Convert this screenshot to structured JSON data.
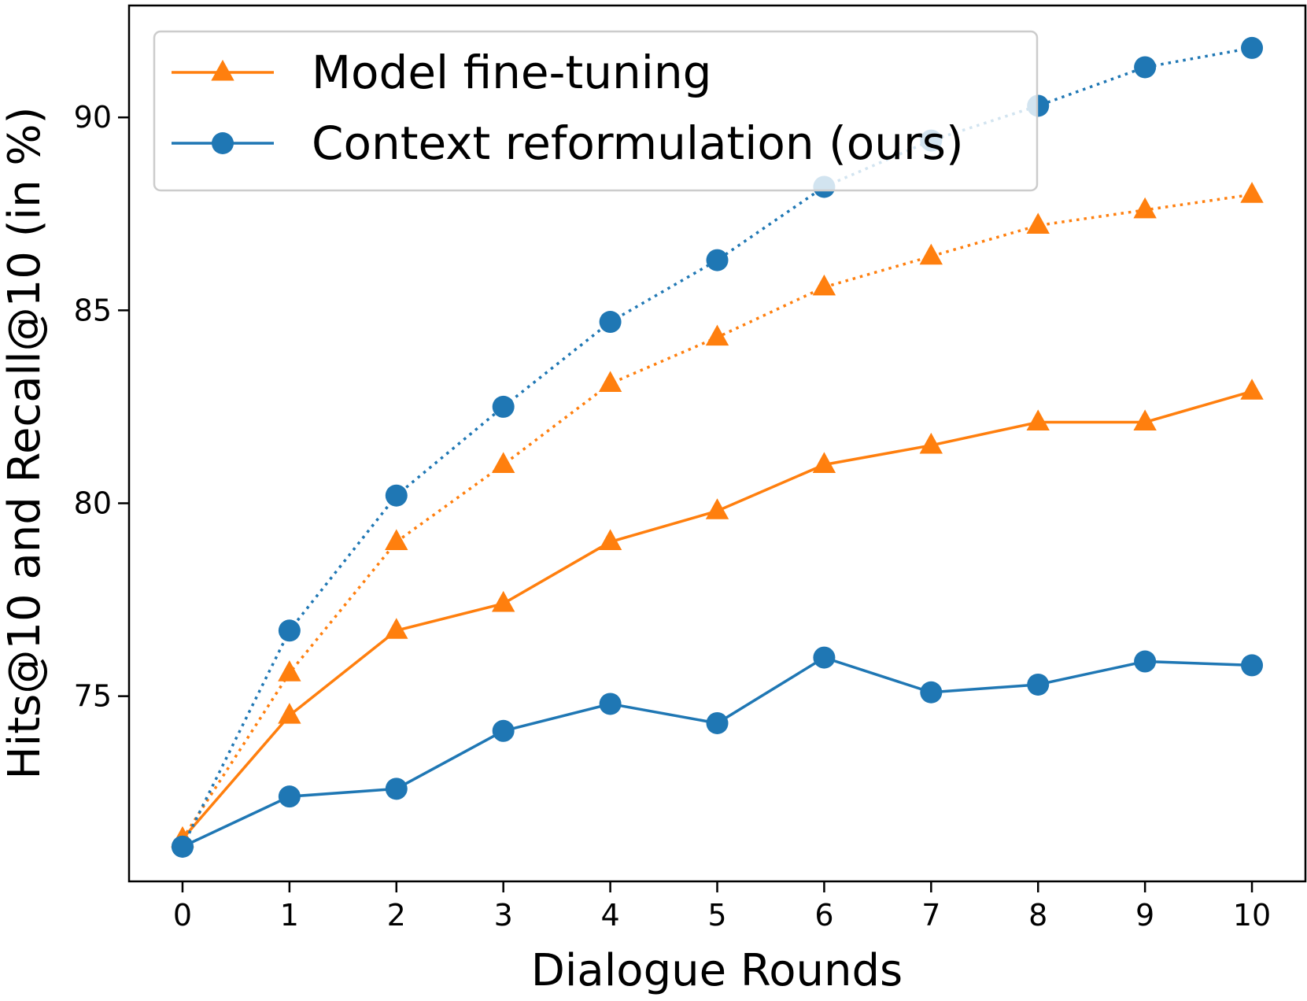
{
  "chart_data": {
    "type": "line",
    "xlabel": "Dialogue Rounds",
    "ylabel": "Hits@10 and Recall@10 (in %)",
    "x": [
      0,
      1,
      2,
      3,
      4,
      5,
      6,
      7,
      8,
      9,
      10
    ],
    "xticks": [
      "0",
      "1",
      "2",
      "3",
      "4",
      "5",
      "6",
      "7",
      "8",
      "9",
      "10"
    ],
    "yticks": [
      "75",
      "80",
      "85",
      "90"
    ],
    "ytick_values": [
      75,
      80,
      85,
      90
    ],
    "xlim": [
      -0.5,
      10.5
    ],
    "ylim": [
      70.2,
      92.9
    ],
    "grid": false,
    "legend_position": "top-left",
    "legend": [
      {
        "label": "Model fine-tuning",
        "color": "#ff7f0e",
        "marker": "triangle"
      },
      {
        "label": "Context reformulation (ours)",
        "color": "#1f77b4",
        "marker": "circle"
      }
    ],
    "series": [
      {
        "name": "Model fine-tuning",
        "linestyle": "dotted",
        "color": "#ff7f0e",
        "marker": "triangle",
        "values": [
          71.3,
          75.6,
          79.0,
          81.0,
          83.1,
          84.3,
          85.6,
          86.4,
          87.2,
          87.6,
          88.0
        ]
      },
      {
        "name": "Model fine-tuning",
        "linestyle": "solid",
        "color": "#ff7f0e",
        "marker": "triangle",
        "values": [
          71.3,
          74.5,
          76.7,
          77.4,
          79.0,
          79.8,
          81.0,
          81.5,
          82.1,
          82.1,
          82.9
        ]
      },
      {
        "name": "Context reformulation (ours)",
        "linestyle": "dotted",
        "color": "#1f77b4",
        "marker": "circle",
        "values": [
          71.1,
          76.7,
          80.2,
          82.5,
          84.7,
          86.3,
          88.2,
          89.4,
          90.3,
          91.3,
          91.8
        ]
      },
      {
        "name": "Context reformulation (ours)",
        "linestyle": "solid",
        "color": "#1f77b4",
        "marker": "circle",
        "values": [
          71.1,
          72.4,
          72.6,
          74.1,
          74.8,
          74.3,
          76.0,
          75.1,
          75.3,
          75.9,
          75.8
        ]
      }
    ]
  }
}
